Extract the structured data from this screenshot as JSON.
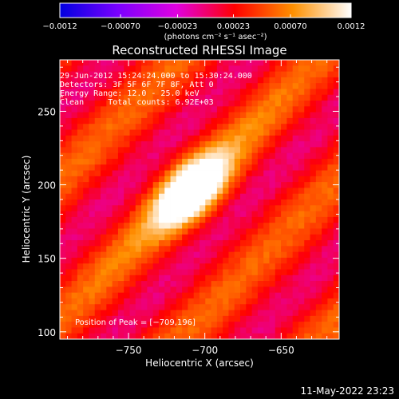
{
  "chart_data": {
    "type": "heatmap",
    "title": "Reconstructed RHESSI Image",
    "xlabel": "Heliocentric X (arcsec)",
    "ylabel": "Heliocentric Y (arcsec)",
    "xlim": [
      -795,
      -612
    ],
    "ylim": [
      95,
      285
    ],
    "x_ticks": [
      -750,
      -700,
      -650
    ],
    "x_tick_labels": [
      "−750",
      "−700",
      "−650"
    ],
    "y_ticks": [
      100,
      150,
      200,
      250
    ],
    "y_tick_labels": [
      "100",
      "150",
      "200",
      "250"
    ],
    "colorbar": {
      "range": [
        -0.0012,
        0.0012
      ],
      "ticks": [
        -0.0012,
        -0.0007,
        -0.00023,
        0.00023,
        0.0007,
        0.0012
      ],
      "tick_labels": [
        "−0.0012",
        "−0.00070",
        "−0.00023",
        "0.00023",
        "0.00070",
        "0.0012"
      ],
      "unit_label": "(photons cm⁻² s⁻¹ asec⁻²)",
      "colors": [
        "#0000e0",
        "#7a00ff",
        "#e000e0",
        "#ff0000",
        "#ff9000",
        "#ffffff"
      ]
    },
    "peak": {
      "x": -709,
      "y": 196
    },
    "annotations": [
      "29-Jun-2012 15:24:24.000 to 15:30:24.000",
      "Detectors: 3F 5F 6F 7F 8F, Att 0",
      "Energy Range: 12.0 - 25.0 keV",
      "Clean     Total counts: 6.92E+03"
    ],
    "peak_label": "Position of Peak = [−709,196]"
  },
  "footer": {
    "timestamp": "11-May-2022 23:23"
  }
}
